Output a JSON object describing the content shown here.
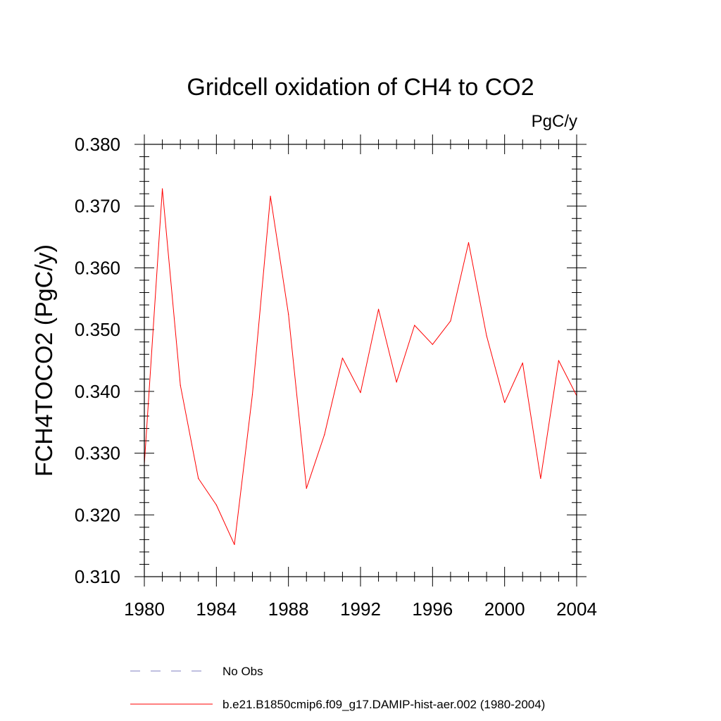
{
  "chart_data": {
    "type": "line",
    "title": "Gridcell oxidation of CH4 to CO2",
    "units": "PgC/y",
    "ylabel": "FCH4TOCO2  (PgC/y)",
    "xlabel": "",
    "xlim": [
      1980,
      2004
    ],
    "ylim": [
      0.31,
      0.38
    ],
    "x_ticks": [
      "1980",
      "1984",
      "1988",
      "1992",
      "1996",
      "2000",
      "2004"
    ],
    "x_tick_values": [
      1980,
      1984,
      1988,
      1992,
      1996,
      2000,
      2004
    ],
    "y_ticks": [
      "0.310",
      "0.320",
      "0.330",
      "0.340",
      "0.350",
      "0.360",
      "0.370",
      "0.380"
    ],
    "y_tick_values": [
      0.31,
      0.32,
      0.33,
      0.34,
      0.35,
      0.36,
      0.37,
      0.38
    ],
    "x": [
      1980,
      1981,
      1982,
      1983,
      1984,
      1985,
      1986,
      1987,
      1988,
      1989,
      1990,
      1991,
      1992,
      1993,
      1994,
      1995,
      1996,
      1997,
      1998,
      1999,
      2000,
      2001,
      2002,
      2003,
      2004
    ],
    "series": [
      {
        "name": "b.e21.B1850cmip6.f09_g17.DAMIP-hist-aer.002 (1980-2004)",
        "color": "#ff0000",
        "values": [
          0.3282,
          0.3728,
          0.341,
          0.3259,
          0.3216,
          0.3152,
          0.3395,
          0.3716,
          0.3525,
          0.3243,
          0.333,
          0.3454,
          0.3398,
          0.3533,
          0.3415,
          0.3507,
          0.3476,
          0.3514,
          0.3641,
          0.349,
          0.3382,
          0.3446,
          0.3259,
          0.345,
          0.3393
        ]
      }
    ],
    "legend": [
      {
        "label": "No Obs",
        "style": "dashed",
        "color": "#8080c0"
      },
      {
        "label": "b.e21.B1850cmip6.f09_g17.DAMIP-hist-aer.002 (1980-2004)",
        "style": "solid",
        "color": "#ff0000"
      }
    ],
    "legend_position": "bottom"
  }
}
